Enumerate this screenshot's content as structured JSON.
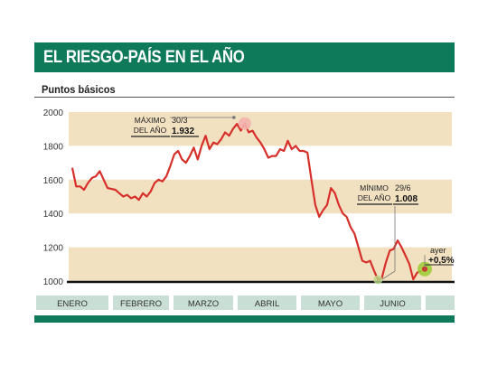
{
  "header": {
    "title": "EL RIESGO-PAÍS EN EL AÑO",
    "subtitle": "Puntos básicos"
  },
  "colors": {
    "brand_green": "#0f7a5a",
    "band_fill": "#f1e1c1",
    "line_red": "#d7302a",
    "month_box": "#c9dfd6",
    "highlight_green": "#9acd32"
  },
  "chart_data": {
    "type": "line",
    "title": "EL RIESGO-PAÍS EN EL AÑO",
    "subtitle": "Puntos básicos",
    "ylim": [
      1000,
      2000
    ],
    "yticks": [
      "1000",
      "1200",
      "1400",
      "1600",
      "1800",
      "2000"
    ],
    "ytick_values": [
      1000,
      1200,
      1400,
      1600,
      1800,
      2000
    ],
    "bands": [
      [
        1000,
        1200
      ],
      [
        1400,
        1600
      ],
      [
        1800,
        2000
      ]
    ],
    "grid": false,
    "months": [
      "ENERO",
      "FEBRERO",
      "MARZO",
      "ABRIL",
      "MAYO",
      "JUNIO"
    ],
    "series": [
      {
        "values": [
          1670,
          1560,
          1560,
          1540,
          1580,
          1610,
          1620,
          1650,
          1600,
          1550,
          1545,
          1540,
          1520,
          1500,
          1510,
          1490,
          1500,
          1480,
          1520,
          1500,
          1530,
          1580,
          1600,
          1590,
          1620,
          1680,
          1750,
          1770,
          1720,
          1700,
          1740,
          1790,
          1720,
          1800,
          1860,
          1780,
          1820,
          1810,
          1840,
          1880,
          1860,
          1900,
          1930,
          1890,
          1932,
          1880,
          1890,
          1850,
          1820,
          1780,
          1730,
          1740,
          1740,
          1780,
          1770,
          1830,
          1780,
          1800,
          1770,
          1770,
          1760,
          1600,
          1450,
          1380,
          1420,
          1450,
          1550,
          1520,
          1450,
          1400,
          1380,
          1320,
          1280,
          1200,
          1120,
          1110,
          1120,
          1060,
          1008,
          1020,
          1110,
          1180,
          1190,
          1240,
          1200,
          1150,
          1100,
          1010,
          1050,
          1060
        ]
      }
    ],
    "annotations": {
      "max": {
        "label": "MÁXIMO DEL AÑO",
        "date": "30/3",
        "value": "1.932"
      },
      "min": {
        "label": "MÍNIMO DEL AÑO",
        "date": "29/6",
        "value": "1.008"
      },
      "last": {
        "label": "ayer",
        "value": "+0,5%"
      }
    }
  }
}
